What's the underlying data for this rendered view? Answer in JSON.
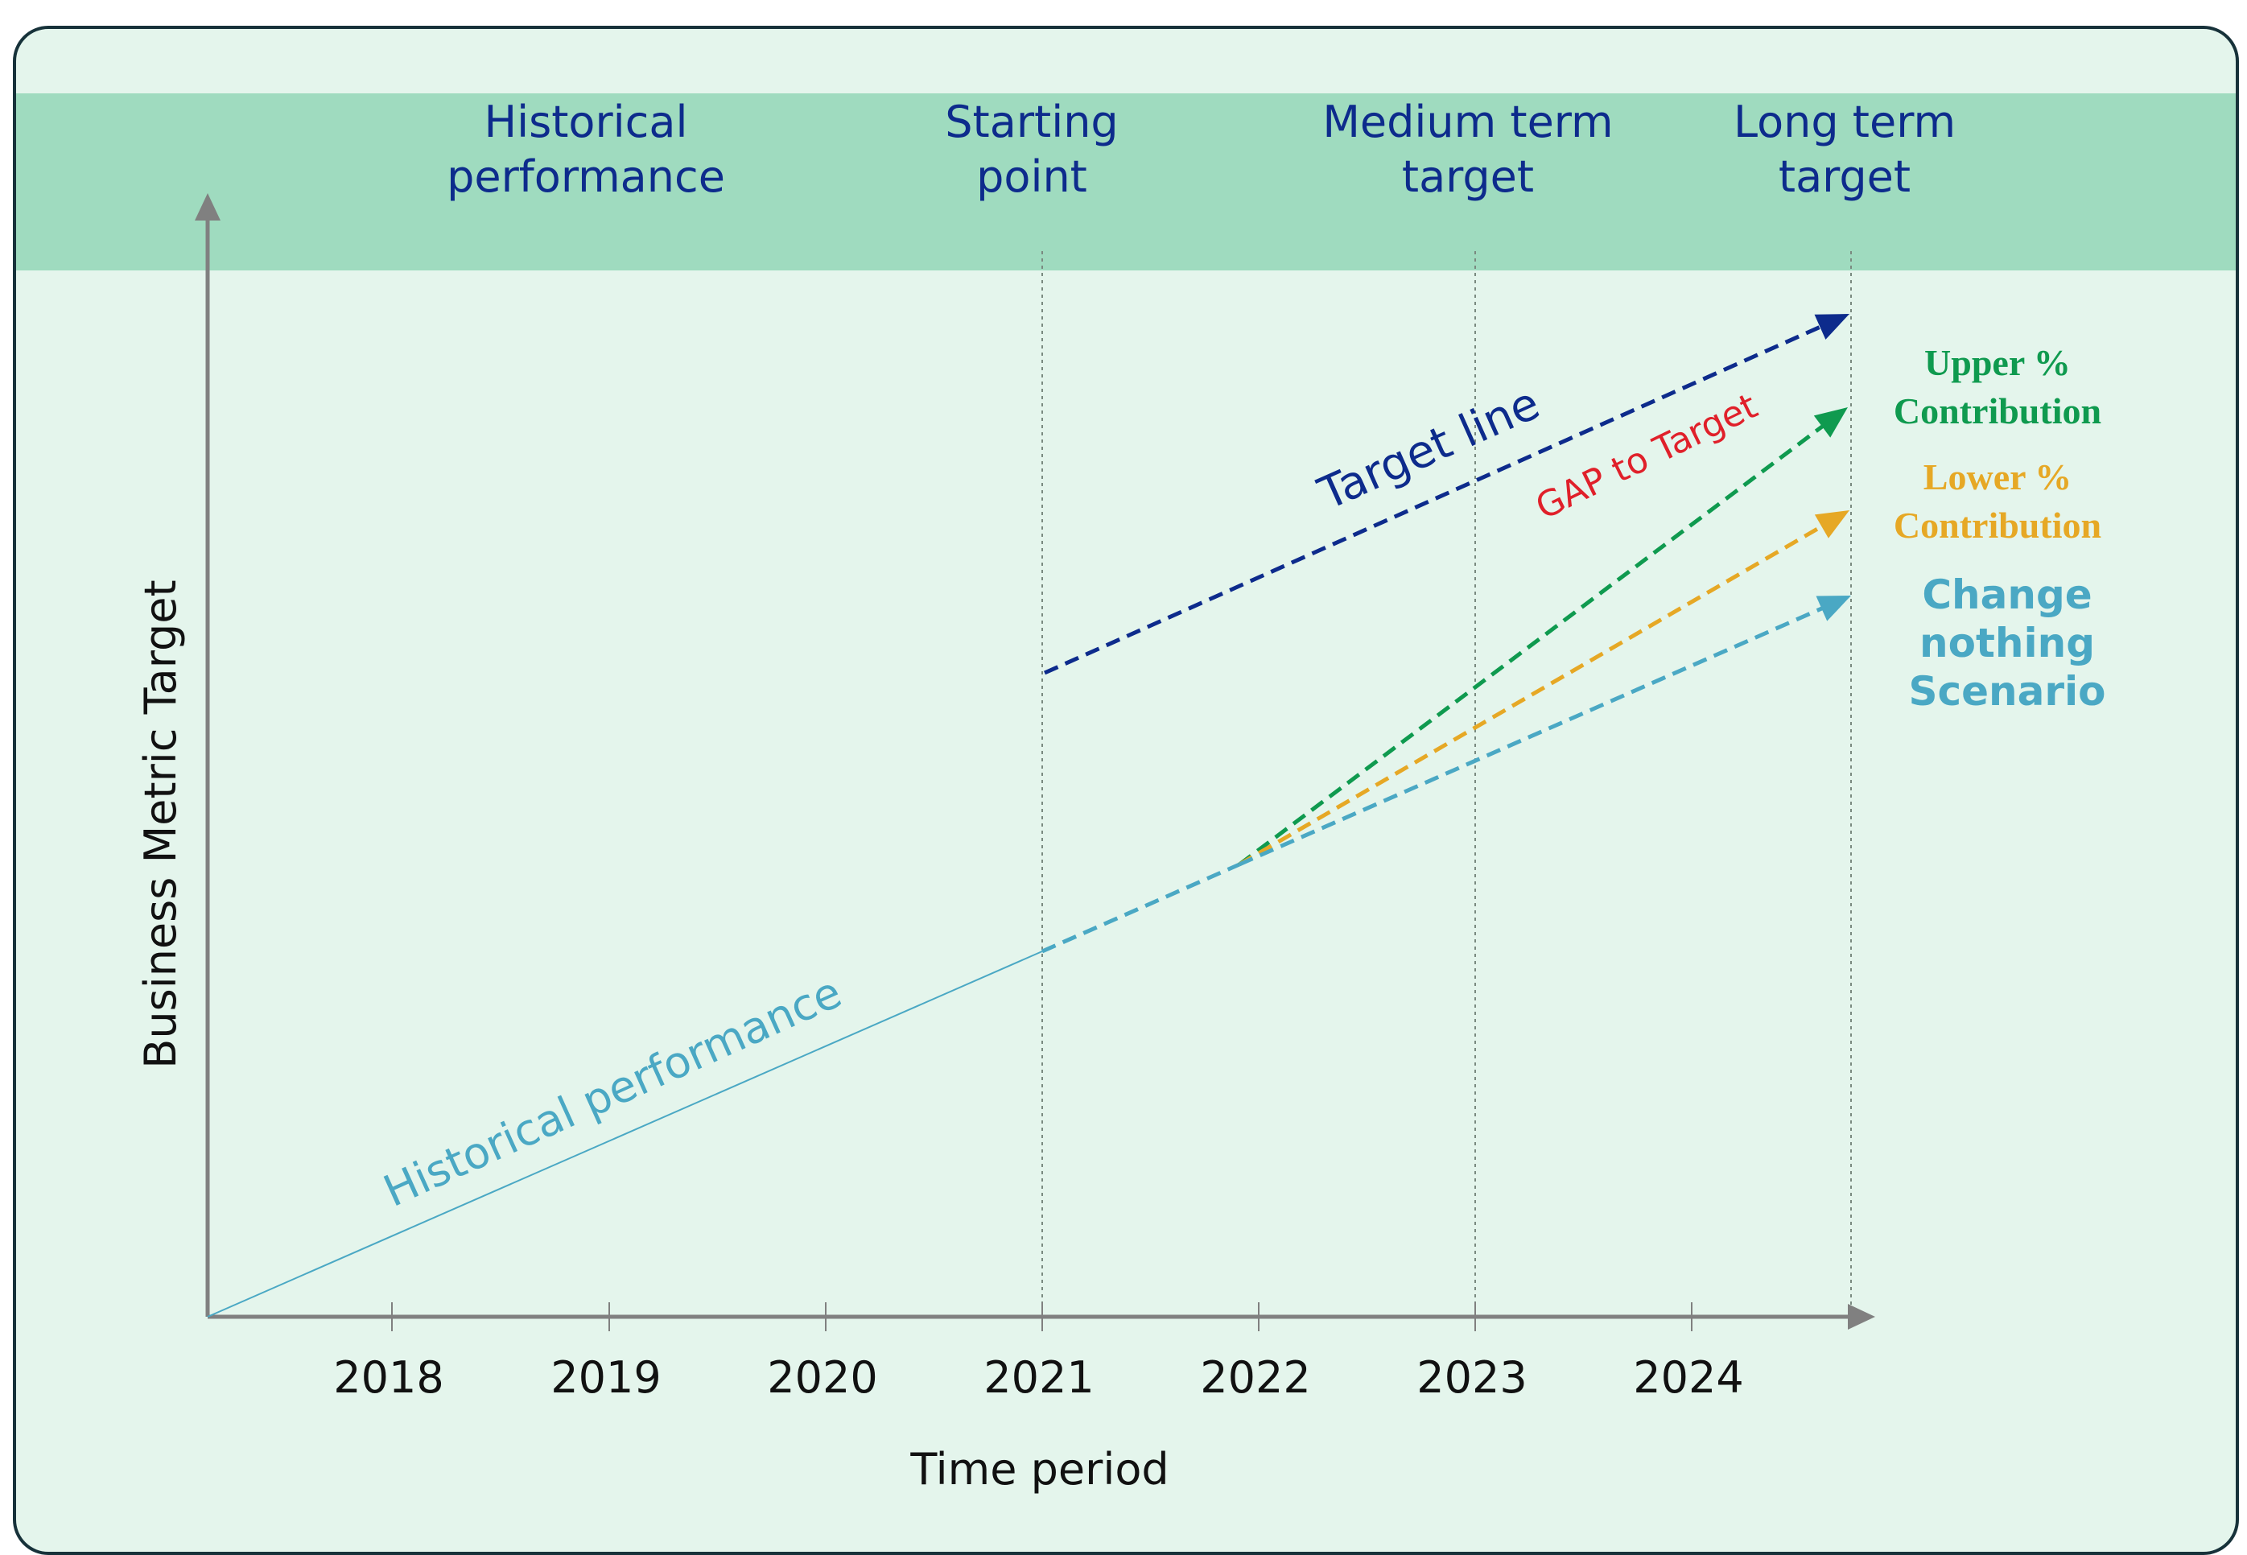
{
  "header": {
    "labels": [
      {
        "text": "Historical\nperformance"
      },
      {
        "text": "Starting\npoint"
      },
      {
        "text": "Medium term\ntarget"
      },
      {
        "text": "Long term\ntarget"
      }
    ]
  },
  "chart_data": {
    "type": "line",
    "xlabel": "Time period",
    "ylabel": "Business Metric Target",
    "x_ticks": [
      "2018",
      "2019",
      "2020",
      "2021",
      "2022",
      "2023",
      "2024"
    ],
    "grid": false,
    "series": [
      {
        "name": "Historical performance",
        "color": "#4aa8c4",
        "style": "solid"
      },
      {
        "name": "Target line",
        "color": "#0d2b8c",
        "style": "dashed"
      },
      {
        "name": "Upper % Contribution",
        "color": "#0f9a4f",
        "style": "dashed"
      },
      {
        "name": "Lower % Contribution",
        "color": "#e6a825",
        "style": "dashed"
      },
      {
        "name": "Change nothing Scenario",
        "color": "#4aa8c4",
        "style": "dashed"
      }
    ],
    "annotations": {
      "gap": "GAP to Target",
      "upper": "Upper %\nContribution",
      "lower": "Lower %\nContribution",
      "change": "Change\nnothing\nScenario"
    },
    "colors": {
      "axis": "#808080",
      "gap": "#e0202a",
      "header_text": "#0d2b8c",
      "band": "#9fdbbf",
      "panel": "#e4f5ec"
    }
  }
}
